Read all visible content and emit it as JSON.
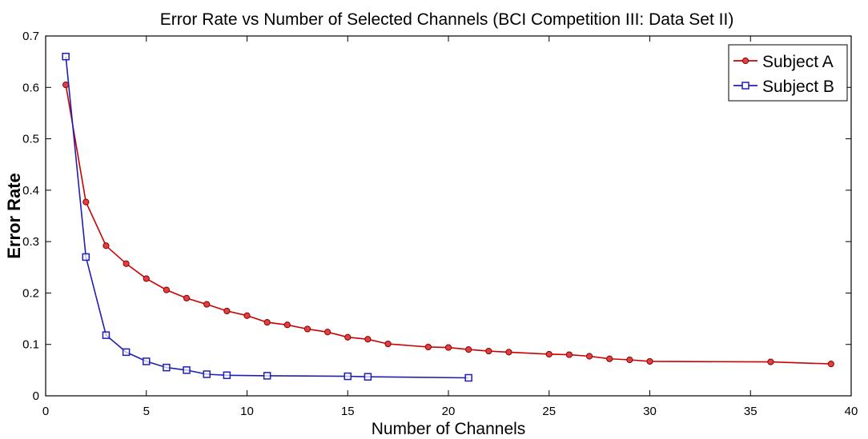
{
  "chart_data": {
    "type": "line",
    "title": "Error Rate vs Number of Selected Channels (BCI Competition III: Data Set II)",
    "xlabel": "Number of Channels",
    "ylabel": "Error Rate",
    "xlim": [
      0,
      40
    ],
    "ylim": [
      0,
      0.7
    ],
    "xticks": [
      0,
      5,
      10,
      15,
      20,
      25,
      30,
      35,
      40
    ],
    "xtick_labels": [
      "0",
      "5",
      "10",
      "15",
      "20",
      "25",
      "30",
      "35",
      "40"
    ],
    "yticks": [
      0,
      0.1,
      0.2,
      0.3,
      0.4,
      0.5,
      0.6,
      0.7
    ],
    "ytick_labels": [
      "0",
      "0.1",
      "0.2",
      "0.3",
      "0.4",
      "0.5",
      "0.6",
      "0.7"
    ],
    "grid": false,
    "legend_position": "top-right",
    "series": [
      {
        "name": "Subject A",
        "color": "#cc0000",
        "marker": "circle",
        "x": [
          1,
          2,
          3,
          4,
          5,
          6,
          7,
          8,
          9,
          10,
          11,
          12,
          13,
          14,
          15,
          16,
          17,
          19,
          20,
          21,
          22,
          23,
          25,
          26,
          27,
          28,
          29,
          30,
          36,
          39
        ],
        "y": [
          0.605,
          0.377,
          0.292,
          0.257,
          0.228,
          0.206,
          0.19,
          0.178,
          0.165,
          0.156,
          0.143,
          0.138,
          0.13,
          0.124,
          0.114,
          0.11,
          0.101,
          0.095,
          0.094,
          0.09,
          0.087,
          0.085,
          0.081,
          0.08,
          0.077,
          0.072,
          0.07,
          0.067,
          0.066,
          0.062
        ]
      },
      {
        "name": "Subject B",
        "color": "#1f1fb0",
        "marker": "square",
        "x": [
          1,
          2,
          3,
          4,
          5,
          6,
          7,
          8,
          9,
          11,
          15,
          16,
          21
        ],
        "y": [
          0.66,
          0.27,
          0.118,
          0.085,
          0.067,
          0.055,
          0.05,
          0.042,
          0.04,
          0.039,
          0.038,
          0.037,
          0.035
        ]
      }
    ]
  }
}
